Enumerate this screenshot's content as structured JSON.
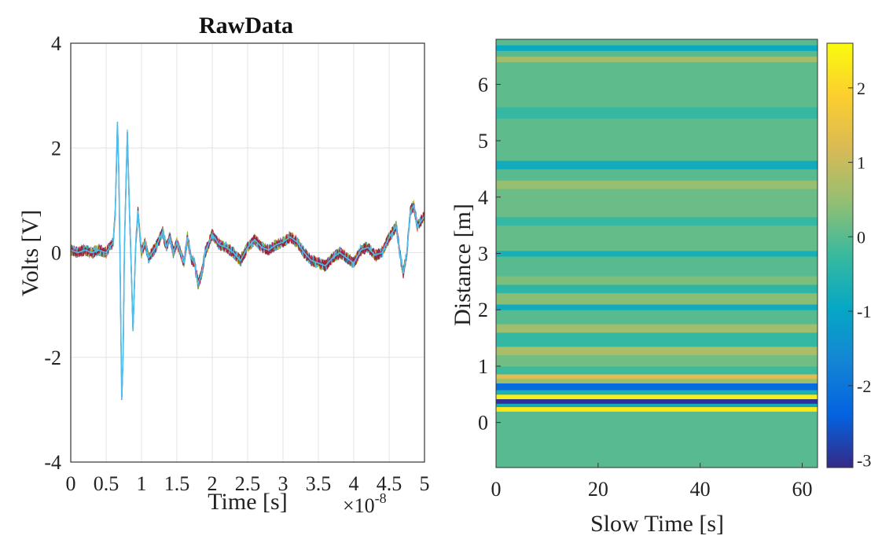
{
  "chart_data": [
    {
      "type": "line",
      "title": "RawData",
      "xlabel": "Time [s]",
      "ylabel": "Volts [V]",
      "x_multiplier": "×10",
      "x_multiplier_exp": "-8",
      "xlim": [
        0,
        5
      ],
      "ylim": [
        -4,
        4
      ],
      "xticks": [
        "0",
        "0.5",
        "1",
        "1.5",
        "2",
        "2.5",
        "3",
        "3.5",
        "4",
        "4.5",
        "5"
      ],
      "yticks": [
        "-4",
        "-2",
        "0",
        "2",
        "4"
      ],
      "grid": true,
      "series_colors": [
        "#0072bd",
        "#d95319",
        "#edb120",
        "#7e2f8e",
        "#77ac30",
        "#4dbeee",
        "#a2142f"
      ],
      "series": [
        {
          "x": [
            0,
            0.1,
            0.2,
            0.3,
            0.4,
            0.5,
            0.55,
            0.6,
            0.63,
            0.66,
            0.68,
            0.7,
            0.72,
            0.74,
            0.76,
            0.8,
            0.83,
            0.86,
            0.88,
            0.9,
            0.92,
            0.95,
            0.98,
            1.0,
            1.05,
            1.1,
            1.2,
            1.3,
            1.35,
            1.4,
            1.45,
            1.5,
            1.6,
            1.65,
            1.7,
            1.75,
            1.8,
            1.85,
            1.9,
            2.0,
            2.1,
            2.2,
            2.3,
            2.4,
            2.5,
            2.6,
            2.7,
            2.8,
            2.9,
            3.0,
            3.1,
            3.2,
            3.3,
            3.4,
            3.5,
            3.6,
            3.7,
            3.8,
            3.9,
            4.0,
            4.1,
            4.2,
            4.3,
            4.4,
            4.5,
            4.6,
            4.65,
            4.7,
            4.75,
            4.8,
            4.85,
            4.9,
            4.95,
            5.0
          ],
          "y": [
            0.05,
            0.0,
            0.05,
            0.0,
            0.05,
            0.0,
            0.1,
            0.2,
            0.8,
            2.5,
            1.5,
            -0.5,
            -2.8,
            -2.0,
            0.2,
            2.3,
            0.8,
            -0.5,
            -1.5,
            -0.6,
            0.2,
            0.8,
            0.3,
            0.0,
            0.2,
            -0.1,
            0.1,
            0.4,
            0.1,
            0.3,
            0.0,
            0.2,
            -0.2,
            0.3,
            -0.1,
            -0.2,
            -0.6,
            -0.4,
            0.0,
            0.35,
            0.15,
            0.1,
            0.0,
            -0.15,
            0.1,
            0.25,
            0.1,
            0.05,
            0.15,
            0.2,
            0.3,
            0.2,
            0.0,
            -0.15,
            -0.2,
            -0.25,
            -0.1,
            0.0,
            -0.1,
            -0.2,
            0.05,
            0.1,
            -0.05,
            0.0,
            0.3,
            0.5,
            0.0,
            -0.4,
            0.0,
            0.8,
            0.9,
            0.5,
            0.6,
            0.7
          ]
        }
      ]
    },
    {
      "type": "heatmap",
      "xlabel": "Slow Time [s]",
      "ylabel": "Distance [m]",
      "xlim": [
        0,
        63
      ],
      "ylim": [
        -0.8,
        6.8
      ],
      "xticks": [
        "0",
        "20",
        "40",
        "60"
      ],
      "yticks": [
        "0",
        "1",
        "2",
        "3",
        "4",
        "5",
        "6"
      ],
      "colorbar_ticks": [
        "2",
        "1",
        "0",
        "-1",
        "-2",
        "-3"
      ],
      "clim": [
        -3.1,
        2.6
      ],
      "colormap": "parula",
      "colormap_stops": [
        "#352a87",
        "#0363e1",
        "#1485d4",
        "#06a7c6",
        "#38b99e",
        "#92bf73",
        "#d9ba56",
        "#fcce2e",
        "#f9fb0e"
      ],
      "bands": [
        {
          "from": -0.8,
          "to": 0.2,
          "value": 0.0
        },
        {
          "from": 0.2,
          "to": 0.28,
          "value": 2.3
        },
        {
          "from": 0.28,
          "to": 0.34,
          "value": -0.8
        },
        {
          "from": 0.34,
          "to": 0.42,
          "value": -3.0
        },
        {
          "from": 0.42,
          "to": 0.5,
          "value": 2.4
        },
        {
          "from": 0.5,
          "to": 0.58,
          "value": -0.6
        },
        {
          "from": 0.58,
          "to": 0.7,
          "value": -2.2
        },
        {
          "from": 0.7,
          "to": 0.78,
          "value": 0.6
        },
        {
          "from": 0.78,
          "to": 0.86,
          "value": 1.3
        },
        {
          "from": 0.86,
          "to": 1.0,
          "value": -0.2
        },
        {
          "from": 1.0,
          "to": 1.2,
          "value": 0.2
        },
        {
          "from": 1.2,
          "to": 1.35,
          "value": 0.7
        },
        {
          "from": 1.35,
          "to": 1.6,
          "value": -0.3
        },
        {
          "from": 1.6,
          "to": 1.75,
          "value": 0.6
        },
        {
          "from": 1.75,
          "to": 2.0,
          "value": 0.0
        },
        {
          "from": 2.0,
          "to": 2.1,
          "value": -0.8
        },
        {
          "from": 2.1,
          "to": 2.3,
          "value": 0.4
        },
        {
          "from": 2.3,
          "to": 2.45,
          "value": -0.4
        },
        {
          "from": 2.45,
          "to": 2.6,
          "value": 0.3
        },
        {
          "from": 2.6,
          "to": 2.95,
          "value": 0.0
        },
        {
          "from": 2.95,
          "to": 3.05,
          "value": -0.7
        },
        {
          "from": 3.05,
          "to": 3.5,
          "value": 0.1
        },
        {
          "from": 3.5,
          "to": 3.65,
          "value": -0.3
        },
        {
          "from": 3.65,
          "to": 4.15,
          "value": 0.15
        },
        {
          "from": 4.15,
          "to": 4.3,
          "value": 0.5
        },
        {
          "from": 4.3,
          "to": 4.5,
          "value": 0.0
        },
        {
          "from": 4.5,
          "to": 4.65,
          "value": -0.8
        },
        {
          "from": 4.65,
          "to": 5.4,
          "value": 0.05
        },
        {
          "from": 5.4,
          "to": 5.6,
          "value": -0.3
        },
        {
          "from": 5.6,
          "to": 6.4,
          "value": 0.05
        },
        {
          "from": 6.4,
          "to": 6.5,
          "value": 0.6
        },
        {
          "from": 6.5,
          "to": 6.6,
          "value": 0.0
        },
        {
          "from": 6.6,
          "to": 6.7,
          "value": -0.9
        },
        {
          "from": 6.7,
          "to": 6.8,
          "value": 0.0
        }
      ]
    }
  ]
}
